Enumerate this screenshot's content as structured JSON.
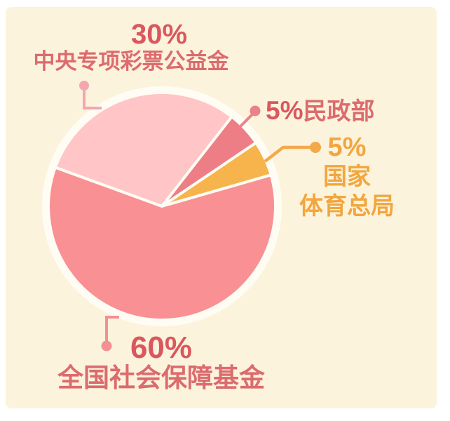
{
  "chart_data": {
    "type": "pie",
    "title": "",
    "legend_position": "callout-labels",
    "start_angle_deg": 290,
    "direction": "clockwise",
    "slices": [
      {
        "label": "中央专项彩票公益金",
        "percent_label": "30%",
        "value": 30,
        "color": "#FFC5C7"
      },
      {
        "label": "民政部",
        "percent_label": "5%",
        "value": 5,
        "color": "#ED7E86"
      },
      {
        "label": "国家体育总局",
        "percent_label": "5%",
        "value": 5,
        "color": "#F7B34C"
      },
      {
        "label": "全国社会保障基金",
        "percent_label": "60%",
        "value": 60,
        "color": "#F99093"
      }
    ]
  },
  "labels": {
    "lottery": {
      "percent": "30%",
      "name": "中央专项彩票公益金"
    },
    "civil": {
      "percent": "5%",
      "name": "民政部"
    },
    "sport": {
      "percent": "5%",
      "line1": "国家",
      "line2": "体育总局"
    },
    "social": {
      "percent": "60%",
      "name": "全国社会保障基金"
    }
  },
  "colors": {
    "panel_background": "#FCF3DD",
    "pie_halo": "#FFFDF3",
    "text_red": "#D9585E",
    "text_red_cjk": "#DC6B6E",
    "text_orange": "#F2A63E",
    "leader_pink": "#F3A7AE",
    "leader_red": "#E9838B",
    "leader_orange": "#F3A94A",
    "leader_salmon": "#F29094"
  }
}
